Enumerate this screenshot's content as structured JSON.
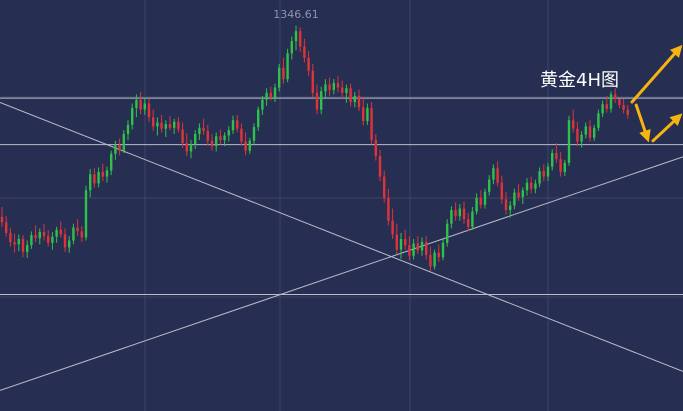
{
  "chart_data": {
    "type": "candlestick",
    "title": "黄金4H图",
    "annotations": [
      {
        "label": "1346.61"
      }
    ],
    "colors": {
      "background": "#262f52",
      "grid": "#3c4566",
      "up": "#2fc24a",
      "down": "#e0323a",
      "lines": "#b9bdca",
      "arrow": "#f6b412"
    },
    "grid": true,
    "peak": 1346.61,
    "ohlc": [
      [
        1321.5,
        1322.8,
        1320.2,
        1320.8
      ],
      [
        1320.8,
        1321.6,
        1318.9,
        1319.4
      ],
      [
        1319.4,
        1320.1,
        1317.6,
        1318.2
      ],
      [
        1318.2,
        1319.3,
        1316.8,
        1317.9
      ],
      [
        1317.9,
        1319.2,
        1317.0,
        1318.6
      ],
      [
        1318.6,
        1319.1,
        1316.2,
        1316.9
      ],
      [
        1316.9,
        1318.4,
        1316.1,
        1317.8
      ],
      [
        1317.8,
        1319.6,
        1317.3,
        1319.1
      ],
      [
        1319.1,
        1320.4,
        1318.2,
        1318.7
      ],
      [
        1318.7,
        1320.0,
        1317.9,
        1319.5
      ],
      [
        1319.5,
        1320.6,
        1318.4,
        1319.0
      ],
      [
        1319.0,
        1319.8,
        1317.6,
        1318.1
      ],
      [
        1318.1,
        1319.5,
        1317.2,
        1318.9
      ],
      [
        1318.9,
        1320.2,
        1318.1,
        1319.8
      ],
      [
        1319.8,
        1320.9,
        1318.8,
        1319.2
      ],
      [
        1319.2,
        1320.0,
        1316.9,
        1317.5
      ],
      [
        1317.5,
        1319.0,
        1316.8,
        1318.4
      ],
      [
        1318.4,
        1320.6,
        1317.9,
        1320.1
      ],
      [
        1320.1,
        1321.2,
        1319.0,
        1319.6
      ],
      [
        1319.6,
        1320.3,
        1318.2,
        1318.8
      ],
      [
        1318.8,
        1325.6,
        1318.4,
        1325.0
      ],
      [
        1325.0,
        1327.8,
        1324.1,
        1327.1
      ],
      [
        1327.1,
        1327.9,
        1325.3,
        1325.9
      ],
      [
        1325.9,
        1328.0,
        1325.4,
        1327.4
      ],
      [
        1327.4,
        1328.5,
        1326.2,
        1326.8
      ],
      [
        1326.8,
        1328.1,
        1326.0,
        1327.6
      ],
      [
        1327.6,
        1330.2,
        1327.0,
        1329.8
      ],
      [
        1329.8,
        1331.5,
        1329.0,
        1330.9
      ],
      [
        1330.9,
        1331.8,
        1329.6,
        1330.2
      ],
      [
        1330.2,
        1332.9,
        1329.9,
        1332.4
      ],
      [
        1332.4,
        1334.2,
        1331.6,
        1333.6
      ],
      [
        1333.6,
        1336.4,
        1333.0,
        1335.8
      ],
      [
        1335.8,
        1337.6,
        1334.6,
        1336.9
      ],
      [
        1336.9,
        1337.9,
        1335.0,
        1335.6
      ],
      [
        1335.6,
        1337.2,
        1334.9,
        1336.4
      ],
      [
        1336.4,
        1337.0,
        1334.0,
        1334.6
      ],
      [
        1334.6,
        1335.6,
        1332.8,
        1333.4
      ],
      [
        1333.4,
        1334.6,
        1332.2,
        1333.9
      ],
      [
        1333.9,
        1334.9,
        1332.6,
        1333.1
      ],
      [
        1333.1,
        1334.2,
        1332.0,
        1333.7
      ],
      [
        1333.7,
        1334.8,
        1332.9,
        1333.2
      ],
      [
        1333.2,
        1334.4,
        1332.4,
        1334.0
      ],
      [
        1334.0,
        1334.6,
        1332.6,
        1333.0
      ],
      [
        1333.0,
        1333.9,
        1330.6,
        1331.2
      ],
      [
        1331.2,
        1332.5,
        1329.5,
        1330.1
      ],
      [
        1330.1,
        1331.6,
        1329.2,
        1331.0
      ],
      [
        1331.0,
        1332.9,
        1330.4,
        1332.4
      ],
      [
        1332.4,
        1333.8,
        1331.6,
        1333.2
      ],
      [
        1333.2,
        1334.4,
        1332.3,
        1332.8
      ],
      [
        1332.8,
        1333.6,
        1330.9,
        1331.5
      ],
      [
        1331.5,
        1332.4,
        1330.2,
        1330.8
      ],
      [
        1330.8,
        1332.6,
        1330.1,
        1332.1
      ],
      [
        1332.1,
        1333.0,
        1331.0,
        1331.6
      ],
      [
        1331.6,
        1332.6,
        1330.8,
        1332.2
      ],
      [
        1332.2,
        1333.4,
        1331.4,
        1332.9
      ],
      [
        1332.9,
        1334.8,
        1332.4,
        1334.2
      ],
      [
        1334.2,
        1334.9,
        1332.6,
        1333.1
      ],
      [
        1333.1,
        1333.8,
        1330.9,
        1331.4
      ],
      [
        1331.4,
        1332.6,
        1329.6,
        1330.2
      ],
      [
        1330.2,
        1331.9,
        1329.8,
        1331.5
      ],
      [
        1331.5,
        1333.8,
        1331.0,
        1333.3
      ],
      [
        1333.3,
        1336.0,
        1332.8,
        1335.6
      ],
      [
        1335.6,
        1337.4,
        1334.9,
        1336.9
      ],
      [
        1336.9,
        1338.4,
        1336.1,
        1337.8
      ],
      [
        1337.8,
        1338.6,
        1336.8,
        1337.2
      ],
      [
        1337.2,
        1339.0,
        1336.6,
        1338.5
      ],
      [
        1338.5,
        1341.6,
        1338.0,
        1341.1
      ],
      [
        1341.1,
        1342.4,
        1339.0,
        1339.6
      ],
      [
        1339.6,
        1343.6,
        1339.2,
        1343.0
      ],
      [
        1343.0,
        1345.2,
        1342.2,
        1344.6
      ],
      [
        1344.6,
        1346.61,
        1343.4,
        1345.9
      ],
      [
        1345.9,
        1346.4,
        1343.2,
        1343.9
      ],
      [
        1343.9,
        1344.9,
        1341.8,
        1342.4
      ],
      [
        1342.4,
        1343.3,
        1340.0,
        1340.7
      ],
      [
        1340.7,
        1341.6,
        1337.2,
        1337.8
      ],
      [
        1337.8,
        1338.9,
        1335.0,
        1335.6
      ],
      [
        1335.6,
        1338.6,
        1335.0,
        1338.0
      ],
      [
        1338.0,
        1339.6,
        1337.2,
        1338.9
      ],
      [
        1338.9,
        1339.8,
        1337.4,
        1338.2
      ],
      [
        1338.2,
        1339.6,
        1337.6,
        1339.1
      ],
      [
        1339.1,
        1340.0,
        1337.9,
        1338.5
      ],
      [
        1338.5,
        1339.4,
        1337.1,
        1337.8
      ],
      [
        1337.8,
        1338.9,
        1336.5,
        1338.4
      ],
      [
        1338.4,
        1339.0,
        1336.0,
        1336.6
      ],
      [
        1336.6,
        1337.9,
        1335.9,
        1337.4
      ],
      [
        1337.4,
        1338.2,
        1335.4,
        1335.9
      ],
      [
        1335.9,
        1337.3,
        1333.5,
        1334.1
      ],
      [
        1334.1,
        1336.4,
        1333.6,
        1335.8
      ],
      [
        1335.8,
        1336.6,
        1331.0,
        1331.6
      ],
      [
        1331.6,
        1332.4,
        1328.9,
        1329.5
      ],
      [
        1329.5,
        1330.3,
        1326.2,
        1326.8
      ],
      [
        1326.8,
        1327.6,
        1323.4,
        1324.0
      ],
      [
        1324.0,
        1325.2,
        1320.4,
        1321.0
      ],
      [
        1321.0,
        1322.6,
        1318.6,
        1319.2
      ],
      [
        1319.2,
        1320.6,
        1316.6,
        1317.2
      ],
      [
        1317.2,
        1319.4,
        1316.0,
        1318.6
      ],
      [
        1318.6,
        1319.8,
        1317.2,
        1317.8
      ],
      [
        1317.8,
        1318.9,
        1315.8,
        1316.4
      ],
      [
        1316.4,
        1318.6,
        1315.9,
        1318.0
      ],
      [
        1318.0,
        1319.0,
        1316.6,
        1317.1
      ],
      [
        1317.1,
        1318.8,
        1316.4,
        1318.2
      ],
      [
        1318.2,
        1319.0,
        1315.9,
        1316.5
      ],
      [
        1316.5,
        1317.6,
        1314.4,
        1315.0
      ],
      [
        1315.0,
        1317.2,
        1314.6,
        1316.8
      ],
      [
        1316.8,
        1317.9,
        1315.6,
        1316.2
      ],
      [
        1316.2,
        1318.6,
        1315.8,
        1318.1
      ],
      [
        1318.1,
        1321.2,
        1317.6,
        1320.6
      ],
      [
        1320.6,
        1322.9,
        1320.0,
        1322.4
      ],
      [
        1322.4,
        1323.4,
        1321.0,
        1321.6
      ],
      [
        1321.6,
        1323.2,
        1321.0,
        1322.6
      ],
      [
        1322.6,
        1323.5,
        1320.6,
        1321.2
      ],
      [
        1321.2,
        1322.0,
        1319.6,
        1320.2
      ],
      [
        1320.2,
        1322.8,
        1319.8,
        1322.2
      ],
      [
        1322.2,
        1324.6,
        1321.8,
        1324.0
      ],
      [
        1324.0,
        1325.0,
        1322.6,
        1323.1
      ],
      [
        1323.1,
        1325.2,
        1322.6,
        1324.8
      ],
      [
        1324.8,
        1327.0,
        1324.3,
        1326.4
      ],
      [
        1326.4,
        1328.4,
        1325.8,
        1327.9
      ],
      [
        1327.9,
        1328.8,
        1325.5,
        1326.0
      ],
      [
        1326.0,
        1326.9,
        1323.2,
        1323.8
      ],
      [
        1323.8,
        1324.8,
        1321.8,
        1322.4
      ],
      [
        1322.4,
        1323.6,
        1321.4,
        1323.0
      ],
      [
        1323.0,
        1325.2,
        1322.5,
        1324.7
      ],
      [
        1324.7,
        1325.8,
        1323.6,
        1324.1
      ],
      [
        1324.1,
        1325.4,
        1323.2,
        1325.0
      ],
      [
        1325.0,
        1326.6,
        1324.3,
        1326.0
      ],
      [
        1326.0,
        1326.8,
        1324.6,
        1325.2
      ],
      [
        1325.2,
        1326.4,
        1324.6,
        1325.9
      ],
      [
        1325.9,
        1328.0,
        1325.4,
        1327.5
      ],
      [
        1327.5,
        1328.4,
        1326.2,
        1326.8
      ],
      [
        1326.8,
        1328.6,
        1326.2,
        1328.1
      ],
      [
        1328.1,
        1330.4,
        1327.6,
        1329.9
      ],
      [
        1329.9,
        1331.2,
        1328.6,
        1329.1
      ],
      [
        1329.1,
        1330.0,
        1326.8,
        1327.4
      ],
      [
        1327.4,
        1329.0,
        1326.9,
        1328.6
      ],
      [
        1328.6,
        1334.8,
        1328.2,
        1334.2
      ],
      [
        1334.2,
        1335.6,
        1332.6,
        1333.1
      ],
      [
        1333.1,
        1334.0,
        1330.8,
        1331.4
      ],
      [
        1331.4,
        1332.8,
        1330.6,
        1332.3
      ],
      [
        1332.3,
        1333.9,
        1331.8,
        1333.4
      ],
      [
        1333.4,
        1334.2,
        1331.4,
        1331.9
      ],
      [
        1331.9,
        1333.6,
        1331.5,
        1333.2
      ],
      [
        1333.2,
        1335.6,
        1332.8,
        1335.1
      ],
      [
        1335.1,
        1336.8,
        1334.6,
        1336.3
      ],
      [
        1336.3,
        1337.4,
        1335.2,
        1335.7
      ],
      [
        1335.7,
        1338.0,
        1335.2,
        1337.6
      ],
      [
        1337.6,
        1338.4,
        1336.5,
        1337.0
      ],
      [
        1337.0,
        1336.8,
        1335.8,
        1336.2
      ],
      [
        1336.2,
        1337.0,
        1335.1,
        1335.6
      ],
      [
        1335.6,
        1336.2,
        1334.4,
        1334.9
      ]
    ],
    "lines": [
      {
        "name": "resistance",
        "y1": 1337.1,
        "y2": 1337.1
      },
      {
        "name": "support",
        "y1": 1331.0,
        "y2": 1331.0
      },
      {
        "name": "lower-band",
        "y1": 1311.3,
        "y2": 1311.3
      },
      {
        "name": "falling-trendline",
        "y1": 1336.53,
        "y2": 1301.2
      },
      {
        "name": "rising-trendline",
        "y1": 1298.7,
        "y2": 1329.4
      }
    ],
    "arrows": [
      {
        "name": "arrow-up-large",
        "from": [
          150,
          1336.6
        ],
        "to": [
          162,
          1344.1
        ]
      },
      {
        "name": "arrow-down",
        "from": [
          151,
          1336.2
        ],
        "to": [
          154,
          1331.3
        ]
      },
      {
        "name": "arrow-up-small",
        "from": [
          155,
          1331.5
        ],
        "to": [
          162,
          1335.1
        ]
      }
    ]
  }
}
